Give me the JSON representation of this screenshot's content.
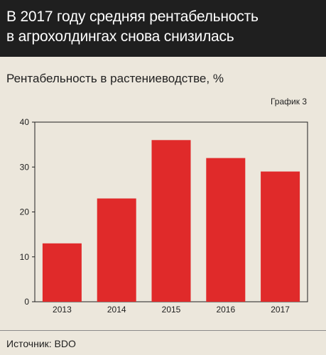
{
  "header": {
    "title_line1": "В 2017 году средняя рентабельность",
    "title_line2": "в агрохолдингах снова снизилась"
  },
  "subtitle": "Рентабельность в растениеводстве, %",
  "chart_number": "График 3",
  "source": "Источник: BDO",
  "colors": {
    "bar": "#e02a2a",
    "header_bg": "#1f1f1f",
    "background": "#ece7dc"
  },
  "chart_data": {
    "type": "bar",
    "title": "Рентабельность в растениеводстве, %",
    "categories": [
      "2013",
      "2014",
      "2015",
      "2016",
      "2017"
    ],
    "values": [
      13,
      23,
      36,
      32,
      29
    ],
    "ylim": [
      0,
      40
    ],
    "yticks": [
      0,
      10,
      20,
      30,
      40
    ],
    "grid": false,
    "legend": "none"
  }
}
